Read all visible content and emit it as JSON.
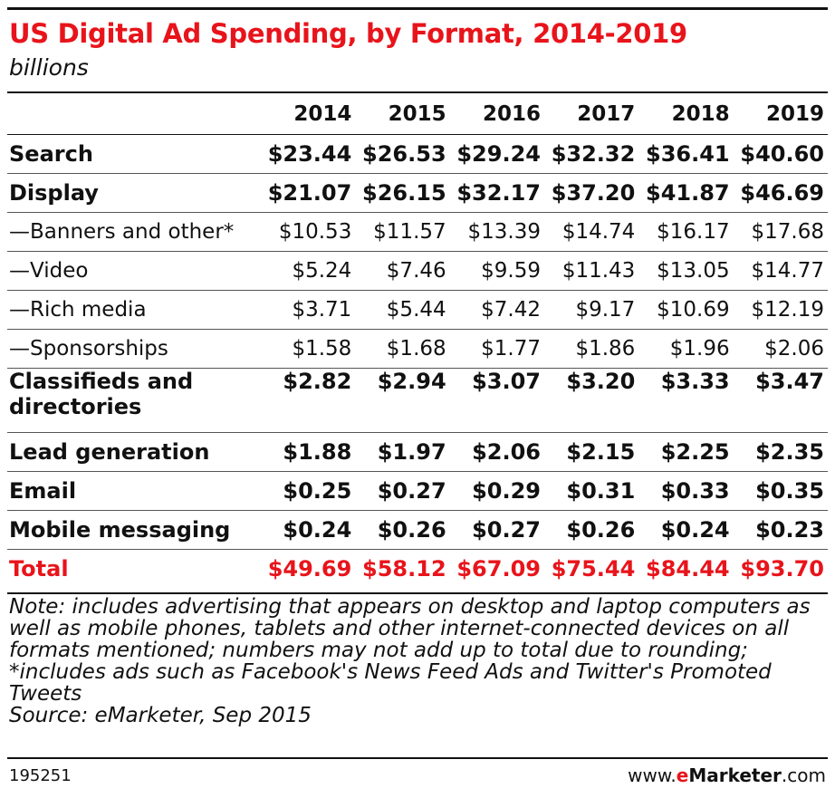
{
  "colors": {
    "accent": "#e8141b",
    "text": "#111111",
    "rule": "#111111"
  },
  "chart_data": {
    "type": "table",
    "title": "US Digital Ad Spending, by Format, 2014-2019",
    "subtitle": "billions",
    "columns": [
      "2014",
      "2015",
      "2016",
      "2017",
      "2018",
      "2019"
    ],
    "rows": [
      {
        "label": "Search",
        "style": "bold",
        "values": [
          "$23.44",
          "$26.53",
          "$29.24",
          "$32.32",
          "$36.41",
          "$40.60"
        ]
      },
      {
        "label": "Display",
        "style": "bold",
        "values": [
          "$21.07",
          "$26.15",
          "$32.17",
          "$37.20",
          "$41.87",
          "$46.69"
        ]
      },
      {
        "label": "—Banners and other*",
        "style": "normal",
        "values": [
          "$10.53",
          "$11.57",
          "$13.39",
          "$14.74",
          "$16.17",
          "$17.68"
        ]
      },
      {
        "label": "—Video",
        "style": "normal",
        "values": [
          "$5.24",
          "$7.46",
          "$9.59",
          "$11.43",
          "$13.05",
          "$14.77"
        ]
      },
      {
        "label": "—Rich media",
        "style": "normal",
        "values": [
          "$3.71",
          "$5.44",
          "$7.42",
          "$9.17",
          "$10.69",
          "$12.19"
        ]
      },
      {
        "label": "—Sponsorships",
        "style": "normal",
        "values": [
          "$1.58",
          "$1.68",
          "$1.77",
          "$1.86",
          "$1.96",
          "$2.06"
        ]
      },
      {
        "label": "Classifieds and directories",
        "style": "bold-tall",
        "values": [
          "$2.82",
          "$2.94",
          "$3.07",
          "$3.20",
          "$3.33",
          "$3.47"
        ]
      },
      {
        "label": "Lead generation",
        "style": "bold",
        "values": [
          "$1.88",
          "$1.97",
          "$2.06",
          "$2.15",
          "$2.25",
          "$2.35"
        ]
      },
      {
        "label": "Email",
        "style": "bold",
        "values": [
          "$0.25",
          "$0.27",
          "$0.29",
          "$0.31",
          "$0.33",
          "$0.35"
        ]
      },
      {
        "label": "Mobile messaging",
        "style": "bold",
        "values": [
          "$0.24",
          "$0.26",
          "$0.27",
          "$0.26",
          "$0.24",
          "$0.23"
        ]
      },
      {
        "label": "Total",
        "style": "total",
        "values": [
          "$49.69",
          "$58.12",
          "$67.09",
          "$75.44",
          "$84.44",
          "$93.70"
        ]
      }
    ]
  },
  "notes": "Note: includes advertising that appears on desktop and laptop computers as well as mobile phones, tablets and other internet-connected devices on all formats mentioned; numbers may not add up to total due to rounding; *includes ads such as Facebook's News Feed Ads and Twitter's Promoted Tweets",
  "source": "Source: eMarketer, Sep 2015",
  "footer": {
    "chart_id": "195251",
    "brand_prefix": "www.",
    "brand_e": "e",
    "brand_name": "Marketer",
    "brand_suffix": ".com"
  }
}
